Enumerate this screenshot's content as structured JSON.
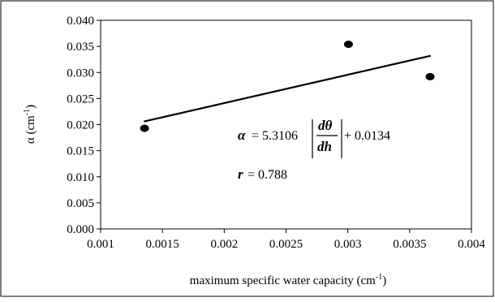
{
  "chart_data": {
    "type": "scatter",
    "xlabel": "maximum specific water capacity (cm",
    "xlabel_sup": "-1",
    "xlabel_end": ")",
    "ylabel": "α (cm",
    "ylabel_sup": "-1",
    "ylabel_end": ")",
    "xlim": [
      0.001,
      0.004
    ],
    "ylim": [
      0.0,
      0.04
    ],
    "xticks": [
      "0.001",
      "0.0015",
      "0.002",
      "0.0025",
      "0.003",
      "0.0035",
      "0.004"
    ],
    "yticks": [
      "0.000",
      "0.005",
      "0.010",
      "0.015",
      "0.020",
      "0.025",
      "0.030",
      "0.035",
      "0.040"
    ],
    "grid": false,
    "points": [
      {
        "x": 0.001355,
        "y": 0.0193
      },
      {
        "x": 0.003005,
        "y": 0.0354
      },
      {
        "x": 0.003665,
        "y": 0.0292
      }
    ],
    "fit_line": {
      "x": [
        0.00135,
        0.00367
      ],
      "y": [
        0.0206,
        0.0332
      ]
    },
    "annotation": {
      "alpha": "α",
      "equals": "= 5.3106",
      "numerator": "dθ",
      "denominator": "dh",
      "plus": "+ 0.0134",
      "r_symbol": "r",
      "r_value": "= 0.788"
    },
    "colors": {
      "marker": "#000000",
      "line": "#000000",
      "axis": "#000000"
    }
  }
}
